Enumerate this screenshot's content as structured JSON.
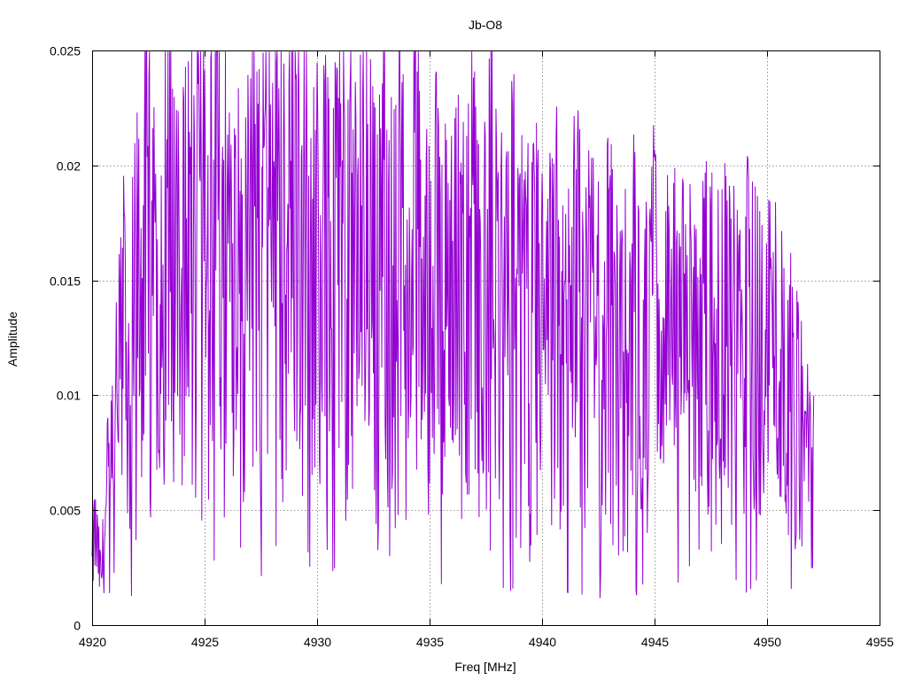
{
  "chart_data": {
    "type": "line",
    "title": "Jb-O8",
    "xlabel": "Freq [MHz]",
    "ylabel": "Amplitude",
    "xlim": [
      4920,
      4955
    ],
    "ylim": [
      0,
      0.025
    ],
    "xticks": [
      "4920",
      "4925",
      "4930",
      "4935",
      "4940",
      "4945",
      "4950",
      "4955"
    ],
    "yticks": [
      "0",
      "0.005",
      "0.01",
      "0.015",
      "0.02",
      "0.025"
    ],
    "grid": true,
    "legend": "none",
    "series_color": "#9400d3",
    "series": [
      {
        "x_start": 4920.0,
        "x_step": 0.1,
        "values": [
          0.0025,
          0.004,
          0.0035,
          0.0027,
          0.002,
          0.0033,
          0.0045,
          0.006,
          0.0055,
          0.0072,
          0.0085,
          0.0095,
          0.0102,
          0.0118,
          0.0128,
          0.0121,
          0.0115,
          0.0109,
          0.0123,
          0.0139,
          0.0148,
          0.0151,
          0.0149,
          0.0158,
          0.0163,
          0.0168,
          0.0159,
          0.0147,
          0.0137,
          0.014,
          0.0153,
          0.0168,
          0.0179,
          0.0181,
          0.0172,
          0.0167,
          0.0163,
          0.0151,
          0.0142,
          0.0144,
          0.0151,
          0.0156,
          0.0166,
          0.0176,
          0.0185,
          0.0186,
          0.0175,
          0.0169,
          0.0162,
          0.0157,
          0.016,
          0.0164,
          0.0166,
          0.0167,
          0.0169,
          0.0173,
          0.0182,
          0.0185,
          0.0187,
          0.0177,
          0.0172,
          0.0174,
          0.0176,
          0.0168,
          0.0164,
          0.0159,
          0.0155,
          0.0156,
          0.0167,
          0.0176,
          0.0184,
          0.0179,
          0.0166,
          0.0157,
          0.0151,
          0.0161,
          0.0177,
          0.0186,
          0.018,
          0.0172,
          0.0173,
          0.0178,
          0.0171,
          0.0162,
          0.0165,
          0.0168,
          0.0174,
          0.0181,
          0.019,
          0.0188,
          0.0177,
          0.0166,
          0.0167,
          0.0179,
          0.0186,
          0.0187,
          0.0176,
          0.0161,
          0.0153,
          0.0158,
          0.0164,
          0.0169,
          0.0175,
          0.0171,
          0.0159,
          0.0149,
          0.0142,
          0.0151,
          0.0165,
          0.0176,
          0.0182,
          0.0178,
          0.0169,
          0.0168,
          0.0174,
          0.0178,
          0.0171,
          0.0163,
          0.0157,
          0.0154,
          0.0158,
          0.0163,
          0.0166,
          0.0171,
          0.0165,
          0.0155,
          0.0142,
          0.0144,
          0.0152,
          0.0162,
          0.0163,
          0.0154,
          0.0149,
          0.0152,
          0.0158,
          0.0164,
          0.0168,
          0.0165,
          0.0158,
          0.0147,
          0.0139,
          0.0142,
          0.0153,
          0.0163,
          0.0169,
          0.0166,
          0.0157,
          0.0147,
          0.0137,
          0.0143,
          0.0151,
          0.0153,
          0.0155,
          0.0149,
          0.0144,
          0.0141,
          0.0136,
          0.0139,
          0.0147,
          0.0158,
          0.0163,
          0.0159,
          0.0152,
          0.0142,
          0.0139,
          0.0136,
          0.0137,
          0.0145,
          0.0154,
          0.0156,
          0.0152,
          0.0143,
          0.0131,
          0.0125,
          0.0129,
          0.0141,
          0.0156,
          0.0165,
          0.0163,
          0.0155,
          0.0146,
          0.0139,
          0.0131,
          0.0128,
          0.0129,
          0.0135,
          0.0147,
          0.0155,
          0.0152,
          0.0143,
          0.0138,
          0.0132,
          0.013,
          0.0131,
          0.0135,
          0.0137,
          0.0142,
          0.0145,
          0.0147,
          0.0139,
          0.0132,
          0.0128,
          0.0122,
          0.0126,
          0.0132,
          0.0138,
          0.0143,
          0.0145,
          0.0138,
          0.0127,
          0.012,
          0.0116,
          0.0123,
          0.0136,
          0.0145,
          0.0148,
          0.0143,
          0.0134,
          0.0124,
          0.0119,
          0.0123,
          0.0129,
          0.0134,
          0.0132,
          0.0127,
          0.0121,
          0.0114,
          0.0116,
          0.0123,
          0.0132,
          0.0137,
          0.0139,
          0.0133,
          0.0128,
          0.0127,
          0.0125,
          0.0122,
          0.0119,
          0.0125,
          0.0133,
          0.0138,
          0.0137,
          0.0129,
          0.0119,
          0.0112,
          0.011,
          0.0114,
          0.0121,
          0.0129,
          0.0136,
          0.0139,
          0.0136,
          0.0127,
          0.012,
          0.0118,
          0.0122,
          0.0125,
          0.0126,
          0.0126,
          0.0123,
          0.0118,
          0.0114,
          0.0117,
          0.0124,
          0.0131,
          0.0134,
          0.0132,
          0.0127,
          0.0119,
          0.0113,
          0.0111,
          0.0115,
          0.0122,
          0.0125,
          0.0126,
          0.0125,
          0.0123,
          0.0122,
          0.0118,
          0.0117,
          0.0121,
          0.0127,
          0.0131,
          0.0133,
          0.0128,
          0.0124,
          0.0122,
          0.0119,
          0.0118,
          0.0117,
          0.0118,
          0.0126,
          0.0132,
          0.0133,
          0.0128,
          0.0123,
          0.0116,
          0.0109,
          0.0106,
          0.011,
          0.0118,
          0.0127,
          0.0133,
          0.0131,
          0.0124,
          0.0115,
          0.011,
          0.0106,
          0.0105,
          0.0103,
          0.0101,
          0.0098,
          0.0096,
          0.0093,
          0.0089,
          0.0086,
          0.0082,
          0.0079,
          0.0074,
          0.0068,
          0.0063
        ]
      }
    ]
  }
}
